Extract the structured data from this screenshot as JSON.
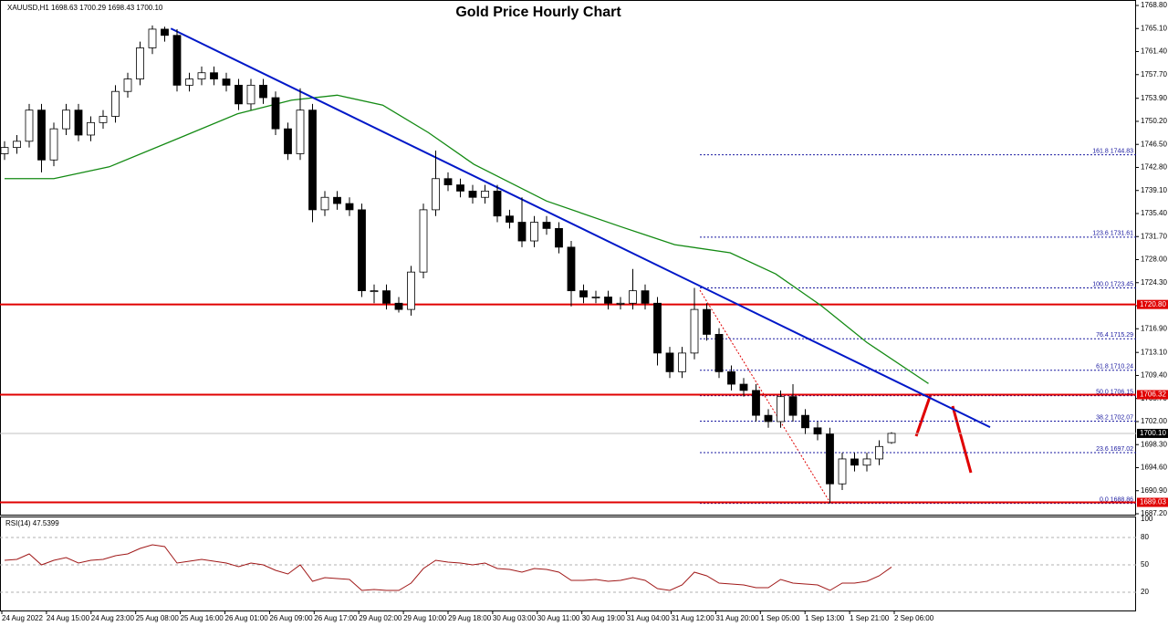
{
  "chart_data": {
    "type": "candlestick",
    "title": "Gold Price Hourly Chart",
    "header": "XAUUSD,H1  1698.63 1700.29 1698.43 1700.10",
    "categories": [
      "24 Aug 2022",
      "24 Aug 15:00",
      "24 Aug 23:00",
      "25 Aug 08:00",
      "25 Aug 16:00",
      "26 Aug 01:00",
      "26 Aug 09:00",
      "26 Aug 17:00",
      "29 Aug 02:00",
      "29 Aug 10:00",
      "29 Aug 18:00",
      "30 Aug 03:00",
      "30 Aug 11:00",
      "30 Aug 19:00",
      "31 Aug 04:00",
      "31 Aug 12:00",
      "31 Aug 20:00",
      "1 Sep 05:00",
      "1 Sep 13:00",
      "1 Sep 21:00",
      "2 Sep 06:00"
    ],
    "open": [
      1745,
      1746,
      1747,
      1752,
      1744,
      1749,
      1752,
      1748,
      1750,
      1751,
      1755,
      1757,
      1762,
      1765,
      1764,
      1756,
      1757,
      1758,
      1757,
      1756,
      1753,
      1756,
      1754,
      1749,
      1745,
      1752,
      1736,
      1738,
      1737,
      1736,
      1723,
      1723,
      1721,
      1720,
      1726,
      1736,
      1741,
      1740,
      1739,
      1738,
      1739,
      1735,
      1734,
      1731,
      1734,
      1733,
      1730,
      1723,
      1722,
      1722,
      1721,
      1721,
      1723,
      1721,
      1713,
      1710,
      1713,
      1720,
      1716,
      1710,
      1708,
      1707,
      1703,
      1702,
      1706,
      1703,
      1701,
      1700,
      1692,
      1696,
      1695,
      1696,
      1698.63
    ],
    "high": [
      1747,
      1748,
      1753,
      1753,
      1750,
      1753,
      1753,
      1751,
      1752,
      1756,
      1758,
      1763,
      1765.6,
      1765.4,
      1765,
      1758,
      1759,
      1759,
      1758,
      1757,
      1757,
      1757,
      1755,
      1750,
      1755.5,
      1753,
      1739,
      1739,
      1738,
      1737,
      1724,
      1724,
      1722,
      1727,
      1737,
      1745.5,
      1742,
      1741,
      1740,
      1740,
      1740,
      1736,
      1738,
      1735,
      1735,
      1734,
      1731,
      1724,
      1723,
      1723,
      1722,
      1726.5,
      1724,
      1722,
      1714,
      1714,
      1723.45,
      1721,
      1717,
      1711,
      1709,
      1708,
      1704,
      1707,
      1708,
      1704,
      1702,
      1701,
      1697,
      1697,
      1697,
      1699,
      1700.29
    ],
    "low": [
      1744,
      1745,
      1746,
      1742,
      1743,
      1748,
      1747,
      1747,
      1749,
      1750,
      1754,
      1756,
      1761,
      1763,
      1755,
      1755,
      1756,
      1756,
      1755,
      1752,
      1752,
      1753,
      1748,
      1744,
      1744,
      1734,
      1735,
      1736,
      1735,
      1722,
      1721,
      1720,
      1719.5,
      1719,
      1725,
      1735,
      1739,
      1738,
      1737,
      1737,
      1734,
      1733,
      1730,
      1730,
      1732,
      1729,
      1720.5,
      1721,
      1721,
      1720,
      1720,
      1720,
      1720,
      1711,
      1709,
      1709,
      1712,
      1715,
      1709,
      1707,
      1706,
      1702,
      1701,
      1701,
      1702,
      1700,
      1699,
      1688.86,
      1691,
      1694,
      1694,
      1695,
      1698.43
    ],
    "close": [
      1746,
      1747,
      1752,
      1744,
      1749,
      1752,
      1748,
      1750,
      1751,
      1755,
      1757,
      1762,
      1765,
      1764,
      1756,
      1757,
      1758,
      1757,
      1756,
      1753,
      1756,
      1754,
      1749,
      1745,
      1752,
      1736,
      1738,
      1737,
      1736,
      1723,
      1723,
      1721,
      1720,
      1726,
      1736,
      1741,
      1740,
      1739,
      1738,
      1739,
      1735,
      1734,
      1731,
      1734,
      1733,
      1730,
      1723,
      1722,
      1722,
      1721,
      1721,
      1723,
      1721,
      1713,
      1710,
      1713,
      1720,
      1716,
      1710,
      1708,
      1707,
      1703,
      1702,
      1706,
      1703,
      1701,
      1700,
      1692,
      1696,
      1695,
      1696,
      1698,
      1700.1
    ],
    "up_color": "#ffffff",
    "down_color": "#000000",
    "ylim": [
      1687.2,
      1768.8
    ],
    "yticks": [
      {
        "value": 1768.8,
        "label": "1768.80"
      },
      {
        "value": 1765.1,
        "label": "1765.10"
      },
      {
        "value": 1761.4,
        "label": "1761.40"
      },
      {
        "value": 1757.7,
        "label": "1757.70"
      },
      {
        "value": 1753.9,
        "label": "1753.90"
      },
      {
        "value": 1750.2,
        "label": "1750.20"
      },
      {
        "value": 1746.5,
        "label": "1746.50"
      },
      {
        "value": 1742.8,
        "label": "1742.80"
      },
      {
        "value": 1739.1,
        "label": "1739.10"
      },
      {
        "value": 1735.4,
        "label": "1735.40"
      },
      {
        "value": 1731.7,
        "label": "1731.70"
      },
      {
        "value": 1728,
        "label": "1728.00"
      },
      {
        "value": 1724.3,
        "label": "1724.30"
      },
      {
        "value": 1720.6,
        "label": "1720.60"
      },
      {
        "value": 1716.9,
        "label": "1716.90"
      },
      {
        "value": 1713.1,
        "label": "1713.10"
      },
      {
        "value": 1709.4,
        "label": "1709.40"
      },
      {
        "value": 1705.7,
        "label": "1705.70"
      },
      {
        "value": 1702,
        "label": "1702.00"
      },
      {
        "value": 1698.3,
        "label": "1698.30"
      },
      {
        "value": 1694.6,
        "label": "1694.60"
      },
      {
        "value": 1690.9,
        "label": "1690.90"
      },
      {
        "value": 1687.2,
        "label": "1687.20"
      }
    ],
    "moving_average": {
      "color": "#138a13",
      "x": [
        0,
        4,
        8.5,
        14.4,
        18.9,
        23.3,
        27,
        30.7,
        34.4,
        38.1,
        44,
        50,
        54.4,
        58.9,
        62.6,
        66.3,
        70,
        75
      ],
      "values": [
        1741,
        1741,
        1742.9,
        1747.7,
        1751.4,
        1753.6,
        1754.4,
        1752.8,
        1748.4,
        1743.3,
        1737.4,
        1733.3,
        1730.4,
        1729.1,
        1725.7,
        1720.6,
        1714.7,
        1708.1
      ]
    },
    "trendline": {
      "color": "#0018c8",
      "x": [
        13.5,
        80
      ],
      "values": [
        1765.1,
        1701.1
      ]
    },
    "levels": [
      {
        "value": 1720.8,
        "label": "1720.80"
      },
      {
        "value": 1706.32,
        "label": "1706.32"
      },
      {
        "value": 1689.03,
        "label": "1689.03"
      }
    ],
    "level_color": "#e00000",
    "current_price": {
      "value": 1700.1,
      "label": "1700.10"
    },
    "fibonacci": [
      {
        "value": 1744.83,
        "label": "161.8 1744.83"
      },
      {
        "value": 1731.61,
        "label": "123.6 1731.61"
      },
      {
        "value": 1723.45,
        "label": "100.0 1723.45"
      },
      {
        "value": 1715.29,
        "label": "76.4 1715.29"
      },
      {
        "value": 1710.24,
        "label": "61.8 1710.24"
      },
      {
        "value": 1706.15,
        "label": "50.0 1706.15"
      },
      {
        "value": 1702.07,
        "label": "38.2 1702.07"
      },
      {
        "value": 1697.02,
        "label": "23.6 1697.02"
      },
      {
        "value": 1688.86,
        "label": "0.0 1688.86"
      }
    ],
    "fib_color": "#1a1aa0",
    "rsi": {
      "label": "RSI(14) 47.5399",
      "color": "#a01818",
      "ylim": [
        0,
        100
      ],
      "yticks": [
        100,
        80,
        50,
        20
      ],
      "values": [
        55,
        56,
        62,
        50,
        55,
        58,
        52,
        55,
        56,
        60,
        62,
        68,
        72,
        70,
        52,
        54,
        56,
        54,
        52,
        48,
        52,
        50,
        44,
        40,
        50,
        32,
        36,
        35,
        34,
        22,
        23,
        22,
        22,
        30,
        46,
        55,
        53,
        52,
        50,
        52,
        46,
        45,
        42,
        46,
        45,
        42,
        33,
        33,
        34,
        32,
        33,
        36,
        33,
        24,
        22,
        28,
        42,
        38,
        30,
        29,
        28,
        25,
        25,
        34,
        30,
        29,
        28,
        22,
        30,
        30,
        32,
        38,
        47.5399
      ]
    }
  }
}
